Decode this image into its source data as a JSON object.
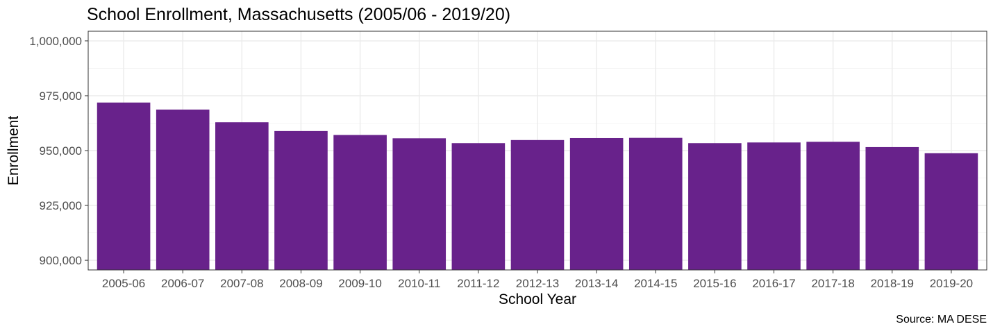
{
  "chart_data": {
    "type": "bar",
    "title": "School Enrollment, Massachusetts (2005/06 - 2019/20)",
    "xlabel": "School Year",
    "ylabel": "Enrollment",
    "caption": "Source: MA DESE",
    "categories": [
      "2005-06",
      "2006-07",
      "2007-08",
      "2008-09",
      "2009-10",
      "2010-11",
      "2011-12",
      "2012-13",
      "2013-14",
      "2014-15",
      "2015-16",
      "2016-17",
      "2017-18",
      "2018-19",
      "2019-20"
    ],
    "values": [
      971900,
      968700,
      962900,
      958900,
      957100,
      955600,
      953400,
      954800,
      955700,
      955800,
      953400,
      953700,
      954000,
      951600,
      948800
    ],
    "yticks": [
      900000,
      925000,
      950000,
      975000,
      1000000
    ],
    "ytick_labels": [
      "900,000",
      "925,000",
      "950,000",
      "975,000",
      "1,000,000"
    ],
    "ylim": [
      895600,
      1004400
    ],
    "bar_color": "#68228b",
    "grid": true,
    "legend": "none"
  }
}
